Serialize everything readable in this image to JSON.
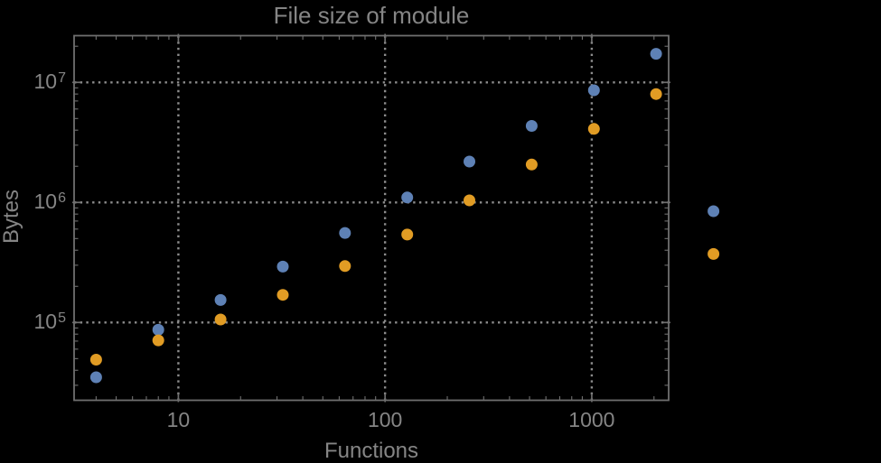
{
  "colors": {
    "background": "#000000",
    "frame": "#6f6f6f",
    "grid": "#8c8c8c",
    "text": "#858585",
    "series_blue": "#5E81B5",
    "series_orange": "#E19C24"
  },
  "chart_data": {
    "type": "scatter",
    "title": "File size of module",
    "xlabel": "Functions",
    "ylabel": "Bytes",
    "x_scale": "log",
    "y_scale": "log",
    "x": [
      4,
      8,
      16,
      32,
      64,
      128,
      256,
      512,
      1024,
      2048,
      3880
    ],
    "series": [
      {
        "name": "blue",
        "color": "#5E81B5",
        "values": [
          35000,
          87000,
          154000,
          292000,
          557000,
          1100000,
          2190000,
          4340000,
          8600000,
          17300000,
          845000
        ]
      },
      {
        "name": "orange",
        "color": "#E19C24",
        "values": [
          49000,
          71000,
          106000,
          170000,
          295000,
          540000,
          1040000,
          2070000,
          4100000,
          8000000,
          372000
        ]
      }
    ],
    "xlim": [
      3.13,
      2355
    ],
    "ylim": [
      22500,
      24500000
    ],
    "x_ticks": [
      10,
      100,
      1000
    ],
    "x_tick_labels": [
      "10",
      "100",
      "1000"
    ],
    "y_ticks": [
      100000,
      1000000,
      10000000
    ],
    "y_tick_labels": [
      "10^5",
      "10^6",
      "10^7"
    ],
    "grid": "dotted-at-major-decades",
    "legend": "none",
    "plot_range_clipping": false
  }
}
